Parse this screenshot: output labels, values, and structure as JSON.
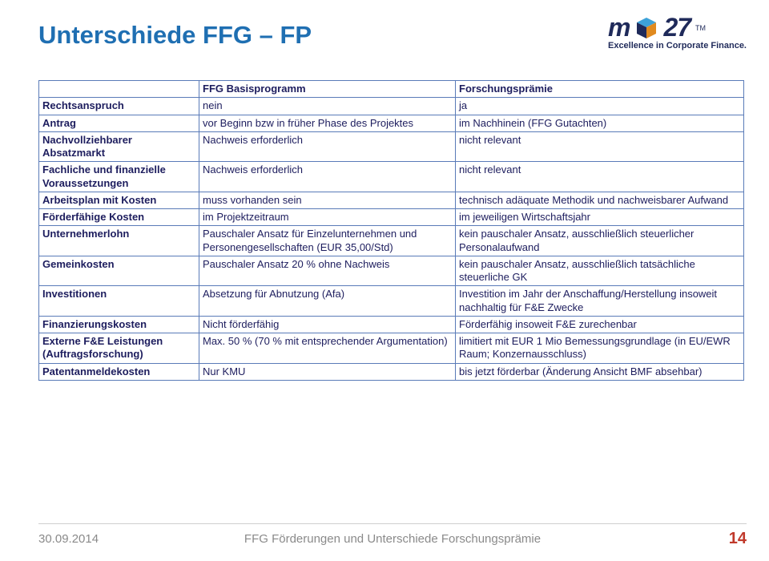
{
  "title": "Unterschiede FFG – FP",
  "logo": {
    "text": "m",
    "num": "27",
    "tagline": "Excellence in Corporate Finance.",
    "tm": "TM"
  },
  "table": {
    "headers": [
      "",
      "FFG Basisprogramm",
      "Forschungsprämie"
    ],
    "rows": [
      {
        "label": "Rechtsanspruch",
        "c2": "nein",
        "c3": "ja"
      },
      {
        "label": "Antrag",
        "c2": "vor Beginn bzw in früher Phase des Projektes",
        "c3": "im Nachhinein (FFG Gutachten)"
      },
      {
        "label": "Nachvollziehbarer Absatzmarkt",
        "c2": "Nachweis erforderlich",
        "c3": "nicht relevant"
      },
      {
        "label": "Fachliche und finanzielle Voraussetzungen",
        "c2": "Nachweis erforderlich",
        "c3": "nicht relevant"
      },
      {
        "label": "Arbeitsplan mit Kosten",
        "c2": "muss vorhanden sein",
        "c3": "technisch adäquate Methodik und nachweisbarer Aufwand"
      },
      {
        "label": "Förderfähige Kosten",
        "c2": "im Projektzeitraum",
        "c3": "im jeweiligen Wirtschaftsjahr"
      },
      {
        "label": "Unternehmerlohn",
        "c2": "Pauschaler Ansatz für Einzelunternehmen und Personengesellschaften (EUR 35,00/Std)",
        "c3": "kein pauschaler Ansatz, ausschließlich steuerlicher Personalaufwand"
      },
      {
        "label": "Gemeinkosten",
        "c2": "Pauschaler Ansatz 20 % ohne Nachweis",
        "c3": "kein pauschaler Ansatz, ausschließlich tatsächliche steuerliche GK"
      },
      {
        "label": "Investitionen",
        "c2": "Absetzung für Abnutzung (Afa)",
        "c3": "Investition im Jahr der Anschaffung/Herstellung insoweit nachhaltig für F&E Zwecke"
      },
      {
        "label": "Finanzierungskosten",
        "c2": "Nicht förderfähig",
        "c3": "Förderfähig insoweit F&E zurechenbar"
      },
      {
        "label": "Externe F&E Leistungen (Auftragsforschung)",
        "c2": "Max. 50 % (70 % mit entsprechender Argumentation)",
        "c3": "limitiert mit EUR 1 Mio Bemessungsgrundlage (in EU/EWR Raum; Konzernausschluss)"
      },
      {
        "label": "Patentanmeldekosten",
        "c2": "Nur KMU",
        "c3": "bis jetzt förderbar (Änderung Ansicht BMF absehbar)"
      }
    ]
  },
  "footer": {
    "date": "30.09.2014",
    "center": "FFG Förderungen und Unterschiede Forschungsprämie",
    "page": "14"
  },
  "colors": {
    "title": "#1f6fb2",
    "border": "#5a7bb8",
    "text": "#1d1d5e",
    "footer_grey": "#8a8a8a",
    "page_red": "#c0392b",
    "logo_navy": "#1f2a5a"
  }
}
